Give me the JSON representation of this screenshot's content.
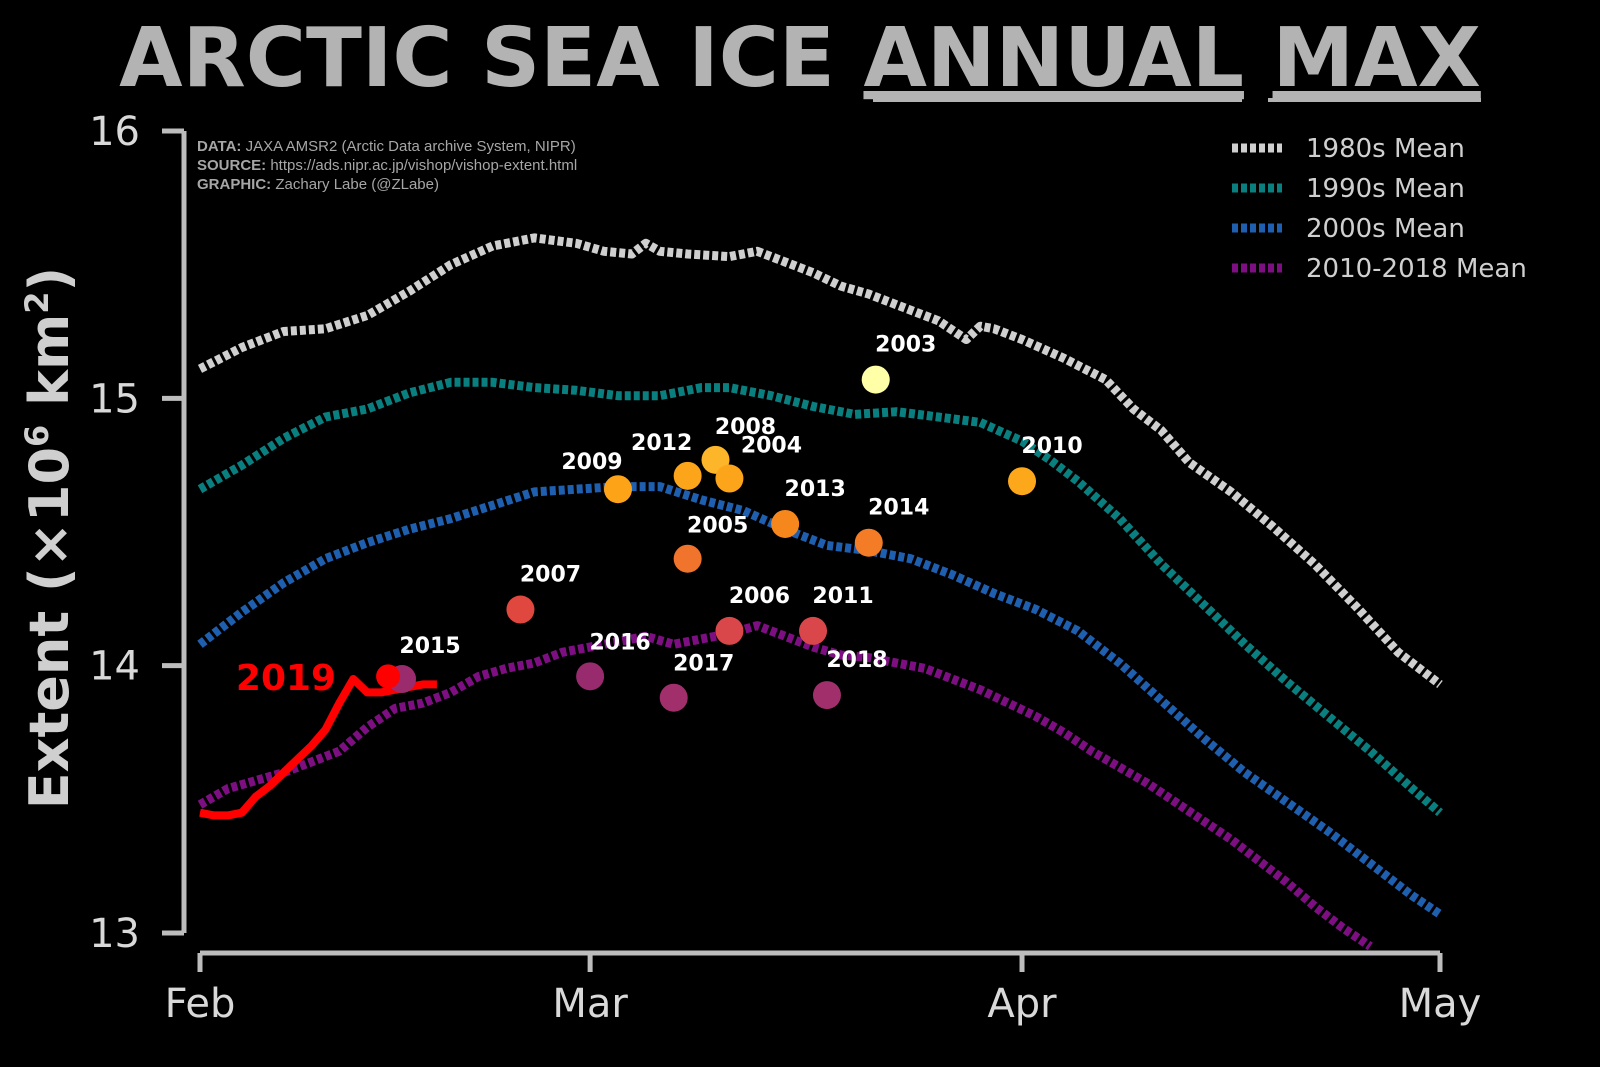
{
  "title": {
    "part1": "ARCTIC SEA ICE ",
    "part2": "ANNUAL",
    "part3": "MAX"
  },
  "credits": [
    {
      "label": "DATA:",
      "text": "JAXA AMSR2 (Arctic Data archive System, NIPR)"
    },
    {
      "label": "SOURCE:",
      "text": "https://ads.nipr.ac.jp/vishop/vishop-extent.html"
    },
    {
      "label": "GRAPHIC:",
      "text": "Zachary Labe (@ZLabe)"
    }
  ],
  "chart_data": {
    "type": "line",
    "ylabel_main": "Extent (×10",
    "ylabel_sup1": "6",
    "ylabel_mid": " km",
    "ylabel_sup2": "2",
    "ylabel_end": ")",
    "ylim": [
      13,
      16
    ],
    "yticks": [
      13,
      14,
      15,
      16
    ],
    "xlim_days": [
      0,
      89
    ],
    "xticks": [
      {
        "day": 0,
        "label": "Feb"
      },
      {
        "day": 28,
        "label": "Mar"
      },
      {
        "day": 59,
        "label": "Apr"
      },
      {
        "day": 89,
        "label": "May"
      }
    ],
    "legend_position": "top-right",
    "series": [
      {
        "name": "1980s Mean",
        "color": "#cfcfcf",
        "x": [
          0,
          3,
          6,
          9,
          12,
          15,
          18,
          21,
          24,
          27,
          29,
          31,
          32,
          33,
          35,
          38,
          40,
          42,
          44,
          46,
          48,
          50,
          53,
          55,
          56,
          57,
          59,
          62,
          65,
          67,
          69,
          71,
          74,
          77,
          80,
          83,
          86,
          89
        ],
        "y": [
          15.11,
          15.19,
          15.25,
          15.26,
          15.31,
          15.4,
          15.5,
          15.57,
          15.6,
          15.58,
          15.55,
          15.54,
          15.58,
          15.55,
          15.54,
          15.53,
          15.55,
          15.51,
          15.47,
          15.42,
          15.39,
          15.35,
          15.29,
          15.22,
          15.27,
          15.26,
          15.22,
          15.15,
          15.07,
          14.96,
          14.88,
          14.76,
          14.65,
          14.52,
          14.38,
          14.22,
          14.05,
          13.93
        ]
      },
      {
        "name": "1990s Mean",
        "color": "#0a7f7f",
        "x": [
          0,
          3,
          6,
          9,
          12,
          15,
          18,
          21,
          24,
          27,
          30,
          33,
          36,
          38,
          41,
          44,
          47,
          50,
          53,
          56,
          59,
          61,
          63,
          66,
          69,
          72,
          75,
          78,
          81,
          84,
          87,
          89
        ],
        "y": [
          14.66,
          14.75,
          14.85,
          14.93,
          14.96,
          15.02,
          15.06,
          15.06,
          15.04,
          15.03,
          15.01,
          15.01,
          15.04,
          15.04,
          15.01,
          14.97,
          14.94,
          14.95,
          14.93,
          14.91,
          14.84,
          14.77,
          14.69,
          14.55,
          14.38,
          14.23,
          14.08,
          13.94,
          13.81,
          13.68,
          13.54,
          13.45
        ]
      },
      {
        "name": "2000s Mean",
        "color": "#1f5fb0",
        "x": [
          0,
          3,
          6,
          9,
          12,
          15,
          18,
          21,
          24,
          27,
          30,
          33,
          36,
          39,
          42,
          45,
          48,
          51,
          54,
          57,
          60,
          63,
          66,
          69,
          72,
          75,
          78,
          81,
          84,
          87,
          89
        ],
        "y": [
          14.08,
          14.2,
          14.31,
          14.4,
          14.46,
          14.51,
          14.55,
          14.6,
          14.65,
          14.66,
          14.67,
          14.67,
          14.62,
          14.58,
          14.51,
          14.45,
          14.43,
          14.4,
          14.34,
          14.27,
          14.21,
          14.13,
          14.01,
          13.87,
          13.73,
          13.6,
          13.49,
          13.38,
          13.26,
          13.14,
          13.07
        ]
      },
      {
        "name": "2010-2018 Mean",
        "color": "#7d0f82",
        "x": [
          0,
          2,
          4,
          6,
          8,
          10,
          12,
          14,
          16,
          18,
          20,
          22,
          24,
          26,
          28,
          30,
          32,
          34,
          36,
          38,
          40,
          42,
          44,
          46,
          48,
          50,
          52,
          54,
          56,
          58,
          60,
          62,
          64,
          66,
          68,
          70,
          72,
          74,
          76,
          78,
          80,
          82,
          84
        ],
        "y": [
          13.48,
          13.54,
          13.57,
          13.6,
          13.64,
          13.68,
          13.77,
          13.84,
          13.86,
          13.9,
          13.96,
          13.99,
          14.01,
          14.05,
          14.07,
          14.09,
          14.11,
          14.08,
          14.1,
          14.12,
          14.15,
          14.11,
          14.07,
          14.04,
          14.03,
          14.01,
          13.99,
          13.95,
          13.91,
          13.86,
          13.81,
          13.75,
          13.68,
          13.62,
          13.56,
          13.49,
          13.42,
          13.35,
          13.27,
          13.19,
          13.1,
          13.02,
          12.95
        ]
      },
      {
        "name": "2019",
        "color": "#ff0000",
        "label": "2019",
        "x": [
          0,
          1,
          2,
          3,
          4,
          5,
          6,
          7,
          8,
          9,
          10,
          11,
          12,
          13,
          14,
          15,
          16,
          17
        ],
        "y": [
          13.45,
          13.44,
          13.44,
          13.45,
          13.51,
          13.55,
          13.6,
          13.65,
          13.7,
          13.76,
          13.86,
          13.95,
          13.9,
          13.9,
          13.91,
          13.92,
          13.93,
          13.93
        ]
      }
    ],
    "max_points": [
      {
        "year": "2003",
        "day": 48.5,
        "value": 15.07,
        "color": "#ffffa8"
      },
      {
        "year": "2010",
        "day": 59,
        "value": 14.69,
        "color": "#fca81a"
      },
      {
        "year": "2009",
        "day": 30.0,
        "value": 14.66,
        "color": "#fca318"
      },
      {
        "year": "2012",
        "day": 35.0,
        "value": 14.71,
        "color": "#fca51a"
      },
      {
        "year": "2008",
        "day": 37.0,
        "value": 14.77,
        "color": "#fdb52a"
      },
      {
        "year": "2004",
        "day": 38.0,
        "value": 14.7,
        "color": "#fca51a"
      },
      {
        "year": "2013",
        "day": 42.0,
        "value": 14.53,
        "color": "#f5871c"
      },
      {
        "year": "2014",
        "day": 48.0,
        "value": 14.46,
        "color": "#f47c26"
      },
      {
        "year": "2005",
        "day": 35.0,
        "value": 14.4,
        "color": "#f0742c"
      },
      {
        "year": "2007",
        "day": 23.0,
        "value": 14.21,
        "color": "#e0473f"
      },
      {
        "year": "2006",
        "day": 38.0,
        "value": 14.13,
        "color": "#d9474a"
      },
      {
        "year": "2011",
        "day": 44.0,
        "value": 14.13,
        "color": "#d9474a"
      },
      {
        "year": "2015",
        "day": 14.5,
        "value": 13.95,
        "color": "#9a2c6e"
      },
      {
        "year": "2016",
        "day": 28.0,
        "value": 13.96,
        "color": "#982b6e"
      },
      {
        "year": "2017",
        "day": 34.0,
        "value": 13.88,
        "color": "#a12f6c"
      },
      {
        "year": "2018",
        "day": 45.0,
        "value": 13.89,
        "color": "#a12f6c"
      },
      {
        "year": "2019",
        "day": 13.5,
        "value": 13.96,
        "color": "#ff0000"
      }
    ]
  }
}
